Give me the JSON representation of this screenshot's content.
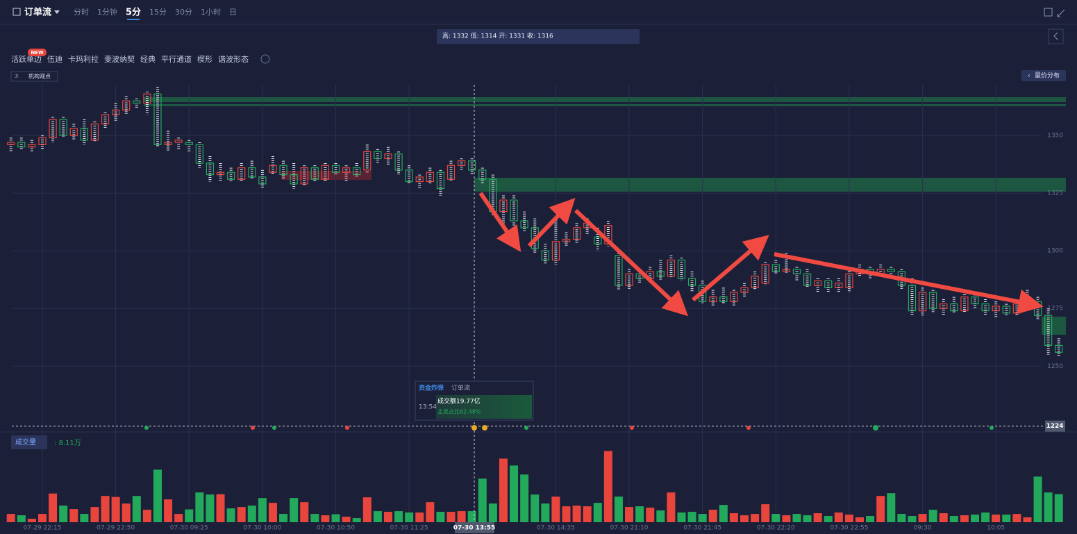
{
  "header": {
    "title": "订单流",
    "tabs": [
      "分时",
      "1分钟",
      "5分",
      "15分",
      "30分",
      "1小时",
      "日"
    ],
    "active_tab": 2
  },
  "info": "高: 1332 低: 1314 开: 1331 收: 1316",
  "tools": {
    "items": [
      "活跃单边",
      "伍迪",
      "卡玛利拉",
      "斐波纳契",
      "经典",
      "平行通道",
      "楔形",
      "谐波形态"
    ],
    "badge": "NEW"
  },
  "opinion": "机构观点",
  "volume_profile": "量价分布",
  "volume_header": {
    "label": "成交量",
    "value": ": 8.11万"
  },
  "tooltip": {
    "tabs": [
      "资金炸弹",
      "订单流"
    ],
    "time": "13:54",
    "amount": "成交额19.77亿",
    "ratio": "主卖占比62.48%"
  },
  "crosshair_label": "07-30 13:55",
  "chart_data": [
    {
      "type": "candlestick",
      "up_color": "#e8453c",
      "down_color": "#22a95b",
      "current_price": 1224,
      "ylim": [
        1223,
        1372
      ],
      "yticks": [
        1350,
        1325,
        1300,
        1275,
        1250
      ],
      "grid": true,
      "categories": [
        null,
        null,
        null,
        "07-29 22:15",
        null,
        null,
        null,
        null,
        null,
        null,
        "07-29 22:50",
        null,
        null,
        null,
        null,
        null,
        null,
        "07-30 09:25",
        null,
        null,
        null,
        null,
        null,
        null,
        "07-30 10:00",
        null,
        null,
        null,
        null,
        null,
        null,
        "07-30 10:50",
        null,
        null,
        null,
        null,
        null,
        null,
        "07-30 11:25",
        null,
        null,
        null,
        null,
        null,
        null,
        null,
        null,
        null,
        null,
        null,
        null,
        null,
        "07-30 14:35",
        null,
        null,
        null,
        null,
        null,
        null,
        "07-30 21:10",
        null,
        null,
        null,
        null,
        null,
        null,
        "07-30 21:45",
        null,
        null,
        null,
        null,
        null,
        null,
        "07-30 22:20",
        null,
        null,
        null,
        null,
        null,
        null,
        "07-30 22:55",
        null,
        null,
        null,
        null,
        null,
        null,
        "09:30",
        null,
        null,
        null,
        null,
        null,
        null,
        "10:05",
        null,
        null,
        null,
        null,
        null,
        null
      ],
      "ohlc": [
        [
          1346,
          1349,
          1343,
          1347
        ],
        [
          1347,
          1349,
          1344,
          1345
        ],
        [
          1345,
          1348,
          1343,
          1346
        ],
        [
          1346,
          1350,
          1344,
          1349
        ],
        [
          1349,
          1358,
          1347,
          1357
        ],
        [
          1357,
          1358,
          1349,
          1350
        ],
        [
          1350,
          1355,
          1348,
          1353
        ],
        [
          1353,
          1357,
          1346,
          1348
        ],
        [
          1348,
          1356,
          1347,
          1355
        ],
        [
          1355,
          1360,
          1353,
          1359
        ],
        [
          1359,
          1364,
          1356,
          1361
        ],
        [
          1361,
          1367,
          1359,
          1365
        ],
        [
          1365,
          1366,
          1362,
          1364
        ],
        [
          1364,
          1369,
          1359,
          1368
        ],
        [
          1368,
          1371,
          1345,
          1346
        ],
        [
          1346,
          1352,
          1343,
          1347
        ],
        [
          1347,
          1349,
          1344,
          1348
        ],
        [
          1347,
          1348,
          1343,
          1346
        ],
        [
          1346,
          1347,
          1336,
          1338
        ],
        [
          1338,
          1341,
          1330,
          1333
        ],
        [
          1333,
          1338,
          1330,
          1334
        ],
        [
          1334,
          1336,
          1330,
          1331
        ],
        [
          1331,
          1338,
          1330,
          1336
        ],
        [
          1336,
          1339,
          1331,
          1332
        ],
        [
          1332,
          1335,
          1327,
          1329
        ],
        [
          1334,
          1341,
          1333,
          1337
        ],
        [
          1337,
          1339,
          1331,
          1333
        ],
        [
          1333,
          1338,
          1327,
          1329
        ],
        [
          1329,
          1337,
          1328,
          1336
        ],
        [
          1336,
          1337,
          1330,
          1331
        ],
        [
          1331,
          1338,
          1330,
          1337
        ],
        [
          1337,
          1338,
          1333,
          1334
        ],
        [
          1334,
          1337,
          1330,
          1336
        ],
        [
          1336,
          1338,
          1332,
          1333
        ],
        [
          1335,
          1346,
          1334,
          1343
        ],
        [
          1343,
          1344,
          1338,
          1340
        ],
        [
          1340,
          1345,
          1337,
          1342
        ],
        [
          1342,
          1343,
          1333,
          1335
        ],
        [
          1335,
          1337,
          1329,
          1330
        ],
        [
          1330,
          1333,
          1327,
          1332
        ],
        [
          1330,
          1336,
          1329,
          1334
        ],
        [
          1334,
          1335,
          1324,
          1327
        ],
        [
          1331,
          1339,
          1330,
          1337
        ],
        [
          1337,
          1340,
          1335,
          1339
        ],
        [
          1339,
          1340,
          1333,
          1335
        ],
        [
          1335,
          1336,
          1329,
          1331
        ],
        [
          1331,
          1333,
          1315,
          1317
        ],
        [
          1317,
          1324,
          1312,
          1322
        ],
        [
          1322,
          1324,
          1311,
          1313
        ],
        [
          1313,
          1317,
          1308,
          1310
        ],
        [
          1310,
          1314,
          1299,
          1301
        ],
        [
          1300,
          1303,
          1294,
          1296
        ],
        [
          1296,
          1314,
          1294,
          1304
        ],
        [
          1304,
          1308,
          1302,
          1305
        ],
        [
          1305,
          1312,
          1303,
          1310
        ],
        [
          1310,
          1314,
          1307,
          1312
        ],
        [
          1306,
          1310,
          1300,
          1303
        ],
        [
          1303,
          1313,
          1302,
          1311
        ],
        [
          1298,
          1299,
          1283,
          1285
        ],
        [
          1285,
          1292,
          1283,
          1290
        ],
        [
          1290,
          1292,
          1286,
          1288
        ],
        [
          1288,
          1293,
          1286,
          1291
        ],
        [
          1291,
          1296,
          1287,
          1289
        ],
        [
          1289,
          1298,
          1288,
          1296
        ],
        [
          1296,
          1297,
          1287,
          1288
        ],
        [
          1288,
          1291,
          1282,
          1285
        ],
        [
          1285,
          1287,
          1277,
          1278
        ],
        [
          1278,
          1283,
          1276,
          1280
        ],
        [
          1280,
          1284,
          1277,
          1278
        ],
        [
          1278,
          1283,
          1276,
          1282
        ],
        [
          1282,
          1286,
          1280,
          1284
        ],
        [
          1284,
          1291,
          1283,
          1289
        ],
        [
          1286,
          1295,
          1285,
          1294
        ],
        [
          1294,
          1296,
          1290,
          1291
        ],
        [
          1291,
          1299,
          1290,
          1292
        ],
        [
          1292,
          1293,
          1287,
          1290
        ],
        [
          1290,
          1292,
          1284,
          1285
        ],
        [
          1285,
          1288,
          1282,
          1287
        ],
        [
          1287,
          1288,
          1282,
          1284
        ],
        [
          1284,
          1288,
          1282,
          1286
        ],
        [
          1284,
          1292,
          1282,
          1290
        ],
        [
          1290,
          1294,
          1289,
          1292
        ],
        [
          1292,
          1293,
          1288,
          1290
        ],
        [
          1290,
          1294,
          1289,
          1292
        ],
        [
          1292,
          1293,
          1288,
          1291
        ],
        [
          1291,
          1292,
          1283,
          1285
        ],
        [
          1285,
          1288,
          1272,
          1274
        ],
        [
          1274,
          1284,
          1272,
          1282
        ],
        [
          1282,
          1283,
          1273,
          1275
        ],
        [
          1275,
          1279,
          1272,
          1277
        ],
        [
          1277,
          1280,
          1273,
          1274
        ],
        [
          1274,
          1282,
          1273,
          1280
        ],
        [
          1280,
          1281,
          1275,
          1277
        ],
        [
          1277,
          1279,
          1272,
          1274
        ],
        [
          1274,
          1278,
          1271,
          1276
        ],
        [
          1276,
          1277,
          1272,
          1273
        ],
        [
          1273,
          1278,
          1272,
          1277
        ],
        [
          1277,
          1283,
          1276,
          1280
        ],
        [
          1278,
          1280,
          1270,
          1272
        ],
        [
          1272,
          1275,
          1255,
          1259
        ],
        [
          1259,
          1262,
          1254,
          1256
        ]
      ]
    },
    {
      "type": "bar",
      "ylim": [
        0,
        21.5
      ],
      "values": [
        2.4,
        2,
        1,
        2.4,
        8.3,
        4.8,
        3.8,
        2.4,
        4.4,
        7.6,
        7.3,
        5.4,
        7.6,
        3.6,
        15.2,
        6.6,
        2.4,
        3.7,
        8.6,
        8,
        8.1,
        4,
        4.4,
        4.8,
        7,
        5.6,
        2.4,
        7,
        5.8,
        2.4,
        2,
        2.3,
        1.6,
        1.2,
        7.2,
        3.2,
        3,
        3.2,
        2.8,
        2.8,
        5.8,
        3,
        3,
        3.2,
        3.2,
        12.6,
        5.4,
        18.4,
        16.4,
        13.8,
        8,
        5.4,
        7.4,
        4.6,
        4.8,
        4.6,
        5.6,
        20.6,
        7.4,
        4.4,
        4.6,
        4.2,
        3.4,
        8.6,
        2.8,
        3,
        2.4,
        3.6,
        5,
        2.6,
        2,
        2.4,
        5.2,
        2.4,
        2,
        2.4,
        2,
        2.6,
        1.8,
        2.8,
        2.2,
        1.4,
        1.8,
        7.6,
        8.4,
        2.4,
        1.8,
        2.4,
        3.6,
        2.6,
        1.8,
        2,
        2.2,
        2.8,
        2.2,
        2.2,
        2.4,
        1.4,
        13.2,
        8.6,
        8.11
      ]
    }
  ]
}
